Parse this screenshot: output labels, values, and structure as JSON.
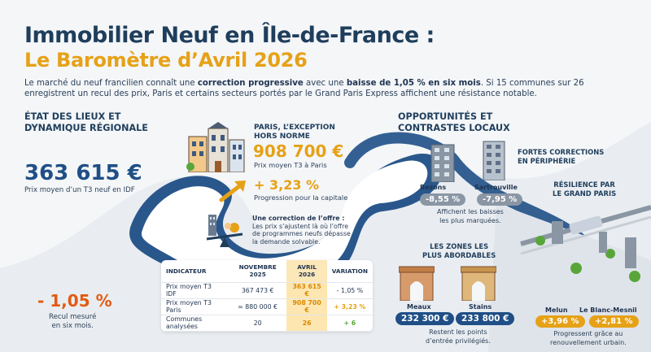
{
  "header": {
    "title_line1": "Immobilier Neuf en Île-de-France :",
    "title_line2": "Le Baromètre d’Avril 2026",
    "intro_p1": "Le marché du neuf francilien connaît une ",
    "intro_b1": "correction progressive",
    "intro_p2": " avec une ",
    "intro_b2": "baisse de 1,05 % en six mois",
    "intro_p3": ". Si 15 communes sur 26 enregistrent un recul des prix, Paris et certains secteurs portés par le Grand Paris Express affichent une résistance notable."
  },
  "left": {
    "section_title_1": "ÉTAT DES LIEUX ET",
    "section_title_2": "DYNAMIQUE RÉGIONALE",
    "avg_price": "363 615 €",
    "avg_price_label": "Prix moyen d’un T3 neuf en IDF",
    "decline": "- 1,05 %",
    "decline_label_1": "Recul mesuré",
    "decline_label_2": "en six mois."
  },
  "paris": {
    "title_1": "PARIS, L’EXCEPTION",
    "title_2": "HORS NORME",
    "price": "908 700 €",
    "price_label": "Prix moyen T3 à Paris",
    "growth": "+ 3,23 %",
    "growth_label": "Progression pour la capitale",
    "offer_title": "Une correction de l’offre :",
    "offer_1": "Les prix s’ajustent là où l’offre",
    "offer_2": "de programmes neufs dépasse",
    "offer_3": "la demande solvable."
  },
  "table": {
    "headers": [
      "INDICATEUR",
      "NOVEMBRE 2025",
      "AVRIL 2026",
      "VARIATION"
    ],
    "rows": [
      {
        "label": "Prix moyen T3 IDF",
        "nov": "367 473 €",
        "avr": "363 615 €",
        "var": "- 1,05 %"
      },
      {
        "label": "Prix moyen T3 Paris",
        "nov": "≈ 880 000 €",
        "avr": "908 700 €",
        "var": "+ 3,23 %"
      },
      {
        "label": "Communes analysées",
        "nov": "20",
        "avr": "26",
        "var": "+ 6"
      }
    ]
  },
  "right": {
    "section_title_1": "OPPORTUNITÉS ET",
    "section_title_2": "CONTRASTES LOCAUX",
    "corrections_title_1": "FORTES CORRECTIONS",
    "corrections_title_2": "EN PÉRIPHÉRIE",
    "bezons_name": "Bezons",
    "bezons_var": "-8,55 %",
    "sartrouville_name": "Sartrouville",
    "sartrouville_var": "-7,95 %",
    "corrections_note_1": "Affichent les baisses",
    "corrections_note_2": "les plus marquées.",
    "resilience_title_1": "RÉSILIENCE PAR",
    "resilience_title_2": "LE GRAND PARIS",
    "affordable_title_1": "LES ZONES LES",
    "affordable_title_2": "PLUS ABORDABLES",
    "meaux_name": "Meaux",
    "meaux_price": "232 300 €",
    "stains_name": "Stains",
    "stains_price": "233 800 €",
    "affordable_note_1": "Restent les points",
    "affordable_note_2": "d’entrée privilégiés.",
    "melun_name": "Melun",
    "melun_var": "+3,96 %",
    "lbm_name": "Le Blanc-Mesnil",
    "lbm_var": "+2,81 %",
    "resilience_note_1": "Progressent grâce au",
    "resilience_note_2": "renouvellement urbain."
  },
  "colors": {
    "navy": "#1f3e5c",
    "orange": "#e6a117",
    "green": "#58a63a",
    "blue_river": "#1f4f86",
    "grey_pill": "#8a96a3"
  }
}
